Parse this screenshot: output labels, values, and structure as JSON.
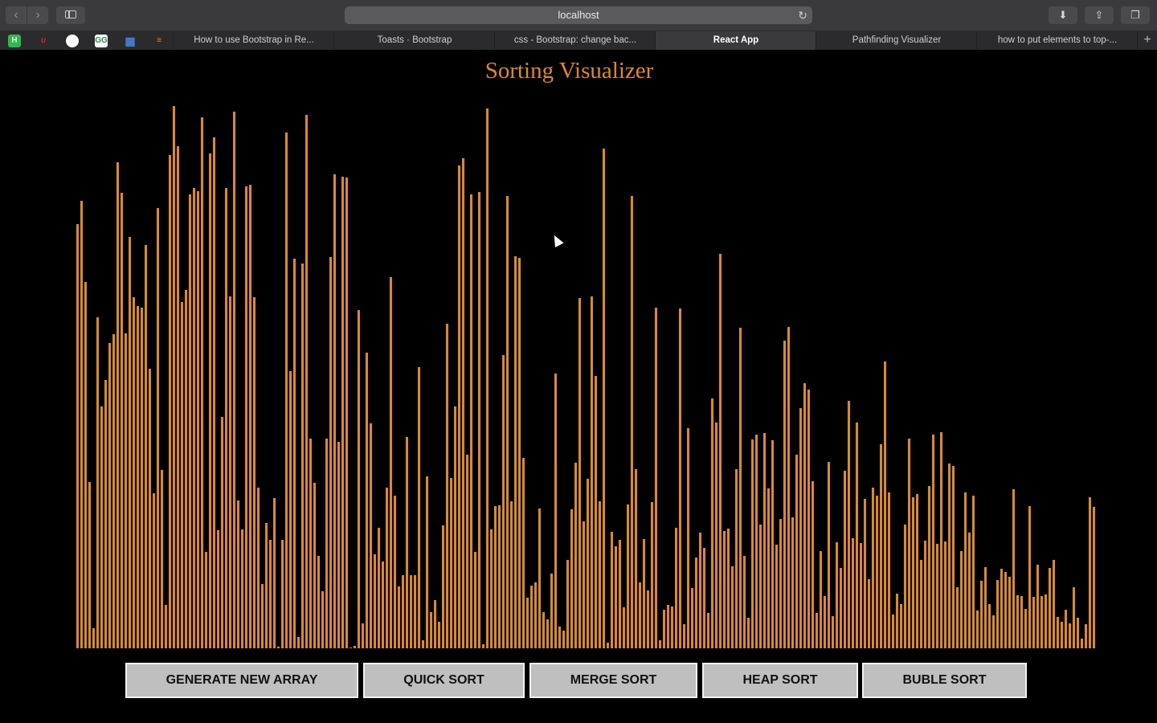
{
  "browser": {
    "url": "localhost",
    "tabs": [
      {
        "label": "How to use Bootstrap in Re...",
        "active": false
      },
      {
        "label": "Toasts · Bootstrap",
        "active": false
      },
      {
        "label": "css - Bootstrap: change bac...",
        "active": false
      },
      {
        "label": "React App",
        "active": true
      },
      {
        "label": "Pathfinding Visualizer",
        "active": false
      },
      {
        "label": "how to put elements to top-...",
        "active": false
      }
    ],
    "bookmarks": [
      "H",
      "u",
      "github",
      "GG",
      "grid",
      "so"
    ]
  },
  "app": {
    "title": "Sorting Visualizer",
    "bar_color": "#e08a1e",
    "array_values": [
      528,
      557,
      456,
      207,
      25,
      412,
      301,
      334,
      380,
      391,
      605,
      567,
      392,
      512,
      437,
      426,
      424,
      502,
      348,
      193,
      548,
      222,
      54,
      614,
      675,
      625,
      431,
      446,
      565,
      573,
      569,
      661,
      120,
      616,
      636,
      147,
      288,
      573,
      438,
      668,
      184,
      148,
      575,
      577,
      437,
      200,
      80,
      156,
      135,
      187,
      2,
      135,
      642,
      345,
      485,
      14,
      479,
      664,
      261,
      206,
      115,
      71,
      261,
      487,
      590,
      257,
      587,
      586,
      1,
      3,
      421,
      31,
      368,
      280,
      117,
      150,
      108,
      200,
      462,
      190,
      77,
      91,
      263,
      91,
      91,
      350,
      10,
      214,
      45,
      60,
      33,
      153,
      404,
      212,
      301,
      601,
      610,
      241,
      565,
      120,
      568,
      5,
      672,
      148,
      177,
      178,
      365,
      563,
      183,
      488,
      486,
      237,
      63,
      78,
      82,
      174,
      45,
      36,
      93,
      342,
      27,
      22,
      110,
      173,
      231,
      436,
      158,
      211,
      438,
      339,
      183,
      622,
      7,
      145,
      127,
      135,
      51,
      179,
      563,
      223,
      82,
      136,
      72,
      182,
      424,
      10,
      48,
      54,
      52,
      150,
      423,
      30,
      274,
      75,
      113,
      144,
      125,
      44,
      311,
      281,
      491,
      146,
      149,
      102,
      223,
      399,
      115,
      38,
      260,
      266,
      154,
      268,
      199,
      259,
      129,
      161,
      383,
      400,
      163,
      241,
      299,
      330,
      322,
      208,
      44,
      121,
      65,
      232,
      40,
      132,
      100,
      221,
      308,
      137,
      281,
      131,
      186,
      86,
      200,
      190,
      254,
      357,
      194,
      42,
      68,
      55,
      154,
      261,
      188,
      192,
      110,
      134,
      202,
      266,
      130,
      269,
      133,
      230,
      227,
      76,
      121,
      194,
      144,
      190,
      47,
      84,
      101,
      55,
      41,
      85,
      99,
      95,
      89,
      198,
      66,
      65,
      49,
      177,
      64,
      104,
      65,
      67,
      100,
      110,
      39,
      33,
      48,
      31,
      76,
      38,
      12,
      30,
      188,
      176
    ],
    "buttons": [
      {
        "label": "GENERATE NEW ARRAY"
      },
      {
        "label": "QUICK SORT"
      },
      {
        "label": "MERGE SORT"
      },
      {
        "label": "HEAP SORT"
      },
      {
        "label": "BUBLE SORT"
      }
    ]
  }
}
